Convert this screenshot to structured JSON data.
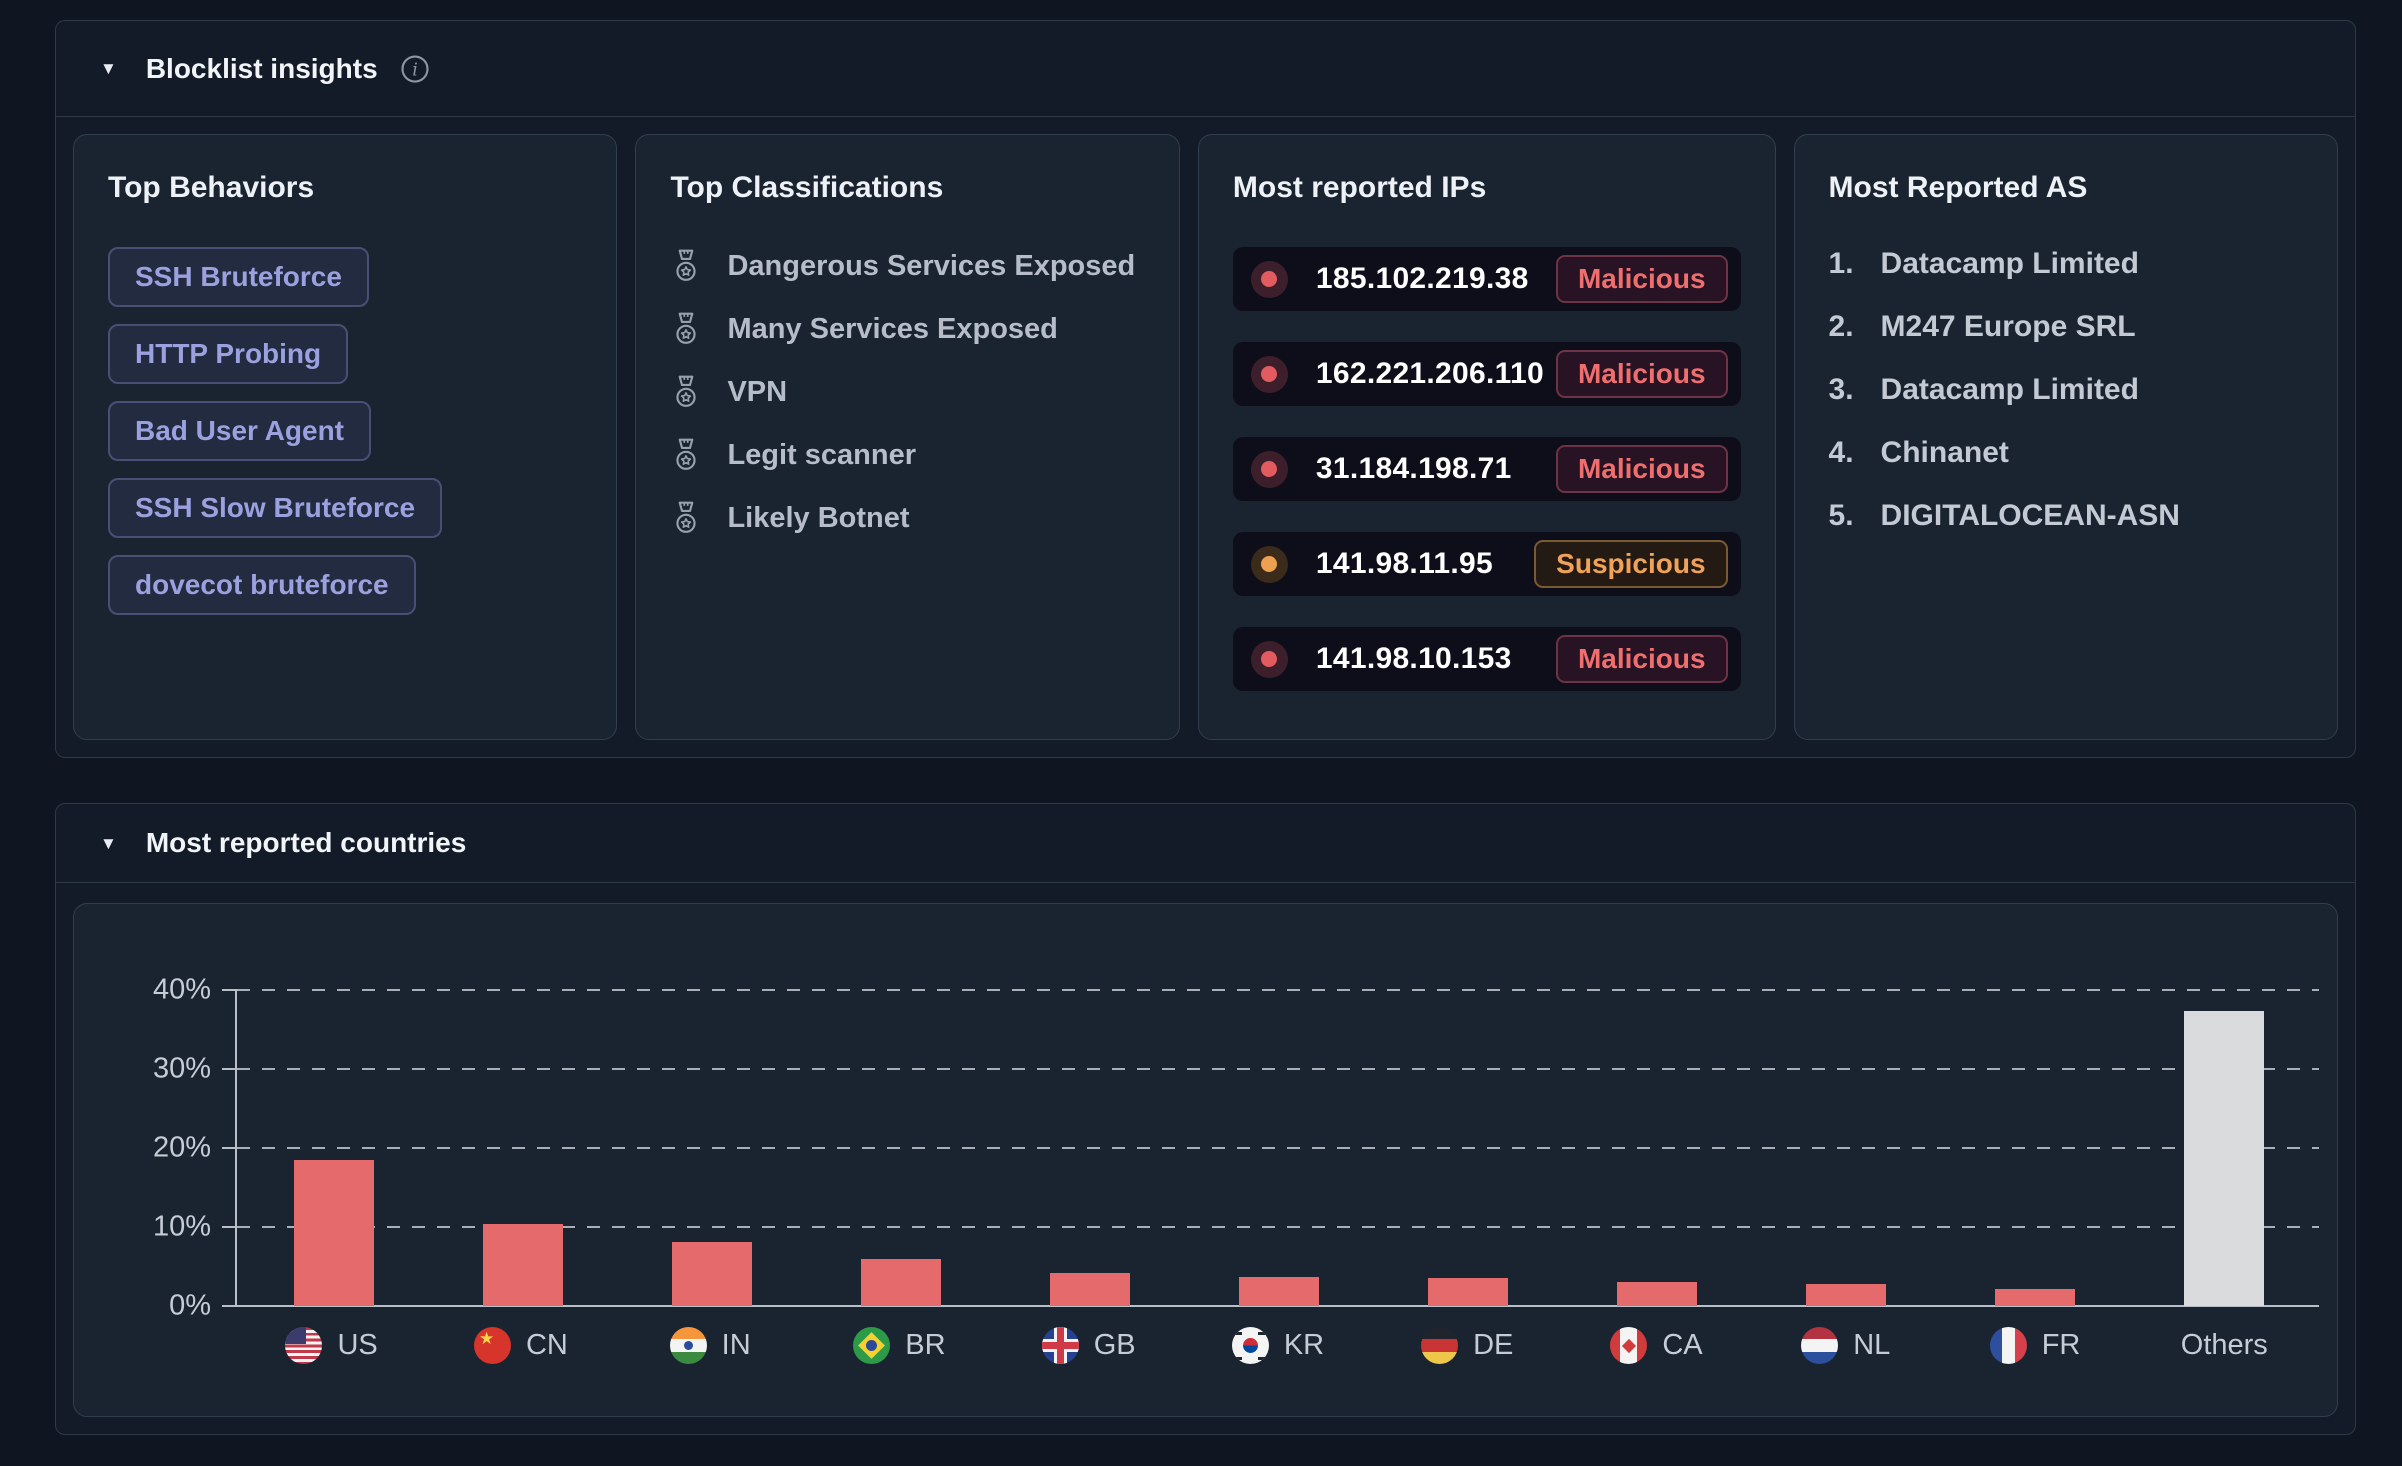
{
  "colors": {
    "malicious": "#ef6e6e",
    "suspicious": "#f0a259",
    "bar_red": "#e56a6b",
    "bar_others": "#d9dbdd",
    "chip_text": "#9ba1de"
  },
  "blocklist": {
    "title": "Blocklist insights",
    "collapse_icon": "▼",
    "top_behaviors": {
      "title": "Top Behaviors",
      "chips": [
        "SSH Bruteforce",
        "HTTP Probing",
        "Bad User Agent",
        "SSH Slow Bruteforce",
        "dovecot bruteforce"
      ]
    },
    "top_classifications": {
      "title": "Top Classifications",
      "icon": "medal-icon",
      "items": [
        "Dangerous Services Exposed",
        "Many Services Exposed",
        "VPN",
        "Legit scanner",
        "Likely Botnet"
      ]
    },
    "most_reported_ips": {
      "title": "Most reported IPs",
      "rows": [
        {
          "ip": "185.102.219.38",
          "status": "Malicious"
        },
        {
          "ip": "162.221.206.110",
          "status": "Malicious"
        },
        {
          "ip": "31.184.198.71",
          "status": "Malicious"
        },
        {
          "ip": "141.98.11.95",
          "status": "Suspicious"
        },
        {
          "ip": "141.98.10.153",
          "status": "Malicious"
        }
      ]
    },
    "most_reported_as": {
      "title": "Most Reported AS",
      "items": [
        "Datacamp Limited",
        "M247 Europe SRL",
        "Datacamp Limited",
        "Chinanet",
        "DIGITALOCEAN-ASN"
      ]
    }
  },
  "countries_section": {
    "title": "Most reported countries",
    "collapse_icon": "▼"
  },
  "chart_data": {
    "type": "bar",
    "title": "Most reported countries",
    "xlabel": "",
    "ylabel": "",
    "ylim": [
      0,
      40
    ],
    "yticks": [
      "0%",
      "10%",
      "20%",
      "30%",
      "40%"
    ],
    "grid": "horizontal dashed",
    "legend": "none",
    "categories": [
      "US",
      "CN",
      "IN",
      "BR",
      "GB",
      "KR",
      "DE",
      "CA",
      "NL",
      "FR",
      "Others"
    ],
    "values": [
      18.5,
      10.4,
      8.1,
      5.9,
      4.2,
      3.7,
      3.6,
      3.1,
      2.8,
      2.2,
      37.3
    ],
    "flags": [
      "us",
      "cn",
      "in",
      "br",
      "gb",
      "kr",
      "de",
      "ca",
      "nl",
      "fr",
      null
    ],
    "bar_colors": [
      "#e56a6b",
      "#e56a6b",
      "#e56a6b",
      "#e56a6b",
      "#e56a6b",
      "#e56a6b",
      "#e56a6b",
      "#e56a6b",
      "#e56a6b",
      "#e56a6b",
      "#d9dbdd"
    ]
  }
}
